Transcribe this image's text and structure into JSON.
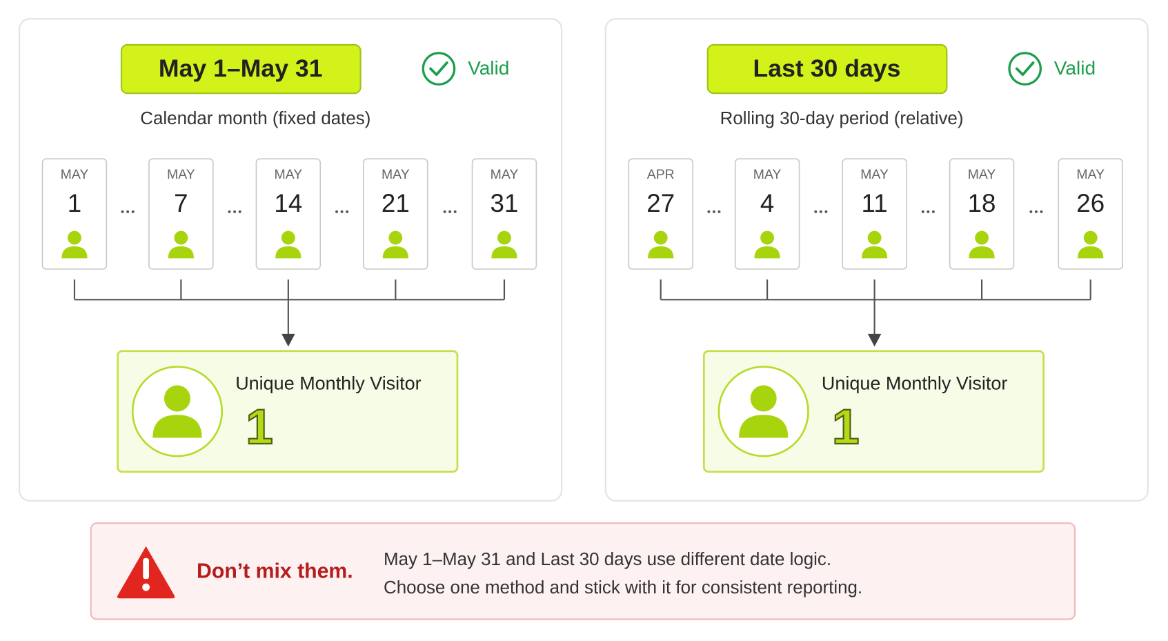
{
  "panels": [
    {
      "label": "May 1–May 31",
      "status": "Valid",
      "caption": "Calendar month (fixed dates)",
      "days": [
        {
          "month": "MAY",
          "day": 1
        },
        {
          "month": "MAY",
          "day": 7
        },
        {
          "month": "MAY",
          "day": 14
        },
        {
          "month": "MAY",
          "day": 21
        },
        {
          "month": "MAY",
          "day": 31
        }
      ],
      "result": {
        "label": "Unique Monthly Visitor",
        "value": 1
      }
    },
    {
      "label": "Last 30 days",
      "status": "Valid",
      "caption": "Rolling 30-day period (relative)",
      "days": [
        {
          "month": "APR",
          "day": 27
        },
        {
          "month": "MAY",
          "day": 4
        },
        {
          "month": "MAY",
          "day": 11
        },
        {
          "month": "MAY",
          "day": 18
        },
        {
          "month": "MAY",
          "day": 26
        }
      ],
      "result": {
        "label": "Unique Monthly Visitor",
        "value": 1
      }
    }
  ],
  "warning": {
    "title": "Don’t mix them.",
    "lines": [
      "May 1–May 31 and Last 30 days use different date logic.",
      "Choose one method and stick with it for consistent reporting."
    ]
  }
}
